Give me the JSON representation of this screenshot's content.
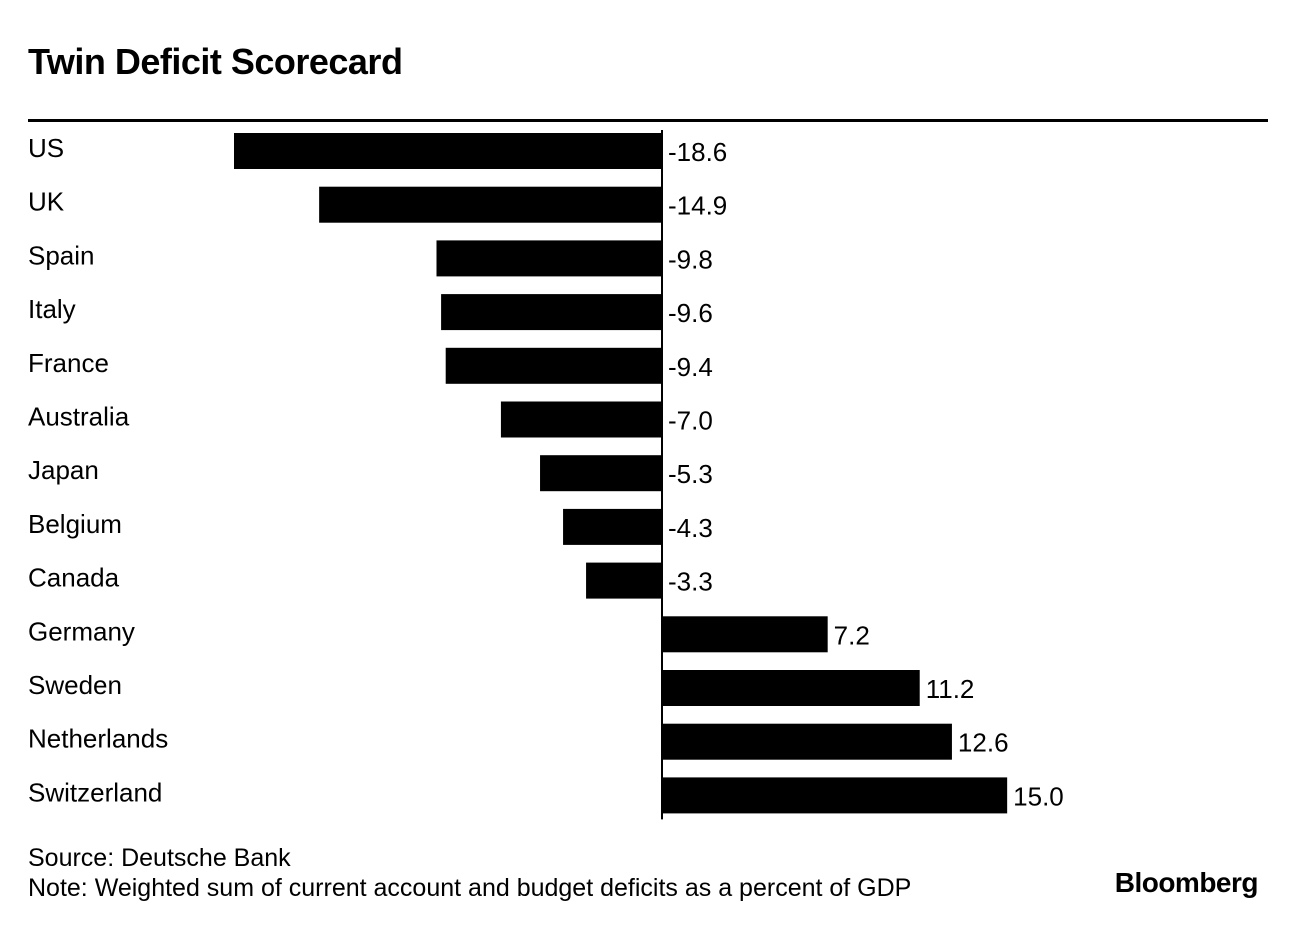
{
  "title": "Twin Deficit Scorecard",
  "chart_data": {
    "type": "bar",
    "orientation": "horizontal",
    "categories": [
      "US",
      "UK",
      "Spain",
      "Italy",
      "France",
      "Australia",
      "Japan",
      "Belgium",
      "Canada",
      "Germany",
      "Sweden",
      "Netherlands",
      "Switzerland"
    ],
    "values": [
      -18.6,
      -14.9,
      -9.8,
      -9.6,
      -9.4,
      -7.0,
      -5.3,
      -4.3,
      -3.3,
      7.2,
      11.2,
      12.6,
      15.0
    ],
    "value_labels": [
      "-18.6",
      "-14.9",
      "-9.8",
      "-9.6",
      "-9.4",
      "-7.0",
      "-5.3",
      "-4.3",
      "-3.3",
      "7.2",
      "11.2",
      "12.6",
      "15.0"
    ],
    "xlim": [
      -18.6,
      15.0
    ],
    "grid": false,
    "bar_color": "#000000"
  },
  "footer": {
    "source": "Source: Deutsche Bank",
    "note": "Note: Weighted sum of current account and budget deficits as a percent of GDP",
    "logo": "Bloomberg"
  }
}
